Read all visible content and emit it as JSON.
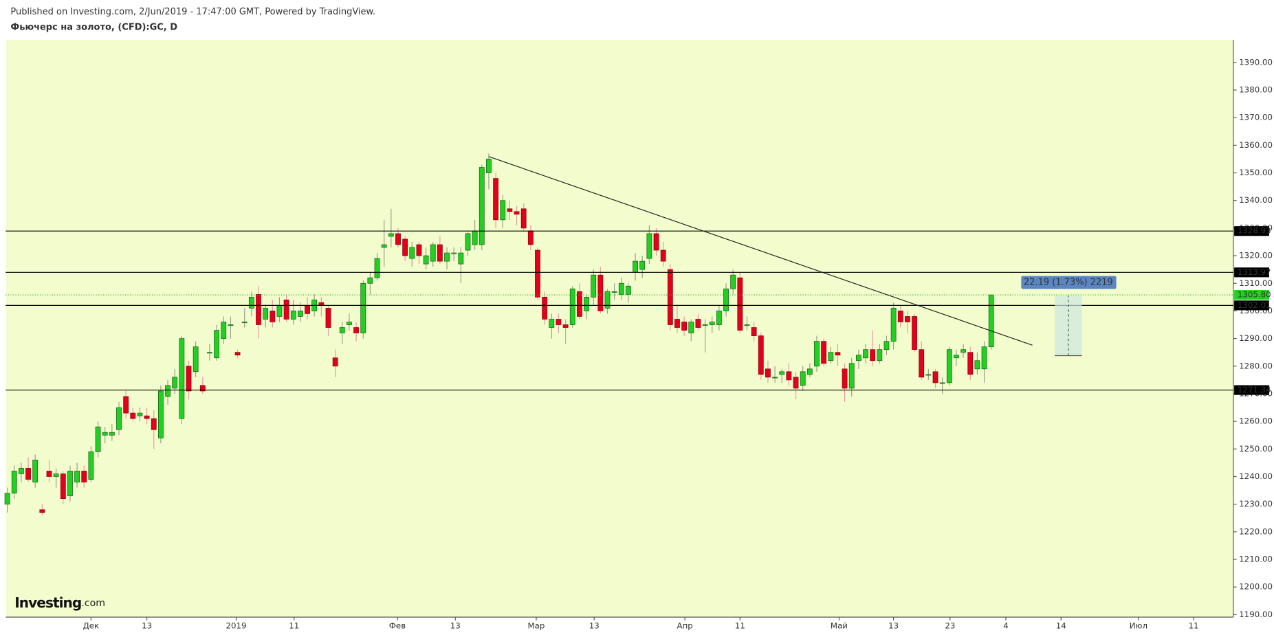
{
  "header": {
    "published": "Published on Investing.com, 2/Jun/2019 - 17:47:00 GMT, Powered by TradingView.",
    "symbol": "Фьючерс на золото, (CFD):GC, D"
  },
  "logo": {
    "brand": "Investing",
    "suffix": ".com"
  },
  "chart_data": {
    "type": "candlestick",
    "open": [
      1230,
      1234,
      1241,
      1243,
      1238,
      1228,
      1242,
      1240,
      1241,
      1233,
      1238,
      1242,
      1239,
      1249,
      1255,
      1255,
      1257,
      1269,
      1263,
      1262,
      1262,
      1261,
      1254,
      1269,
      1272,
      1261,
      1280,
      1278,
      1273,
      1285,
      1283,
      1290,
      1295,
      1285,
      1296,
      1301,
      1306,
      1297,
      1300,
      1298,
      1304,
      1297,
      1298,
      1302,
      1300,
      1303,
      1301,
      1283,
      1292,
      1295,
      1294,
      1292,
      1310,
      1312,
      1323,
      1327,
      1328,
      1326,
      1319,
      1324,
      1317,
      1318,
      1324,
      1318,
      1321,
      1317,
      1322,
      1324,
      1324,
      1350,
      1348,
      1333,
      1337,
      1336,
      1337,
      1329,
      1322,
      1305,
      1294,
      1297,
      1295,
      1295,
      1307,
      1300,
      1305,
      1313,
      1301,
      1307,
      1306,
      1306,
      1314,
      1315,
      1319,
      1328,
      1322,
      1315,
      1297,
      1296,
      1292,
      1297,
      1295,
      1295,
      1295,
      1300,
      1308,
      1312,
      1295,
      1294,
      1291,
      1279,
      1276,
      1277,
      1278,
      1276,
      1273,
      1277,
      1280,
      1289,
      1282,
      1285,
      1279,
      1272,
      1282,
      1283,
      1286,
      1282,
      1286,
      1289,
      1300,
      1298,
      1298,
      1286,
      1277,
      1278,
      1274,
      1274,
      1283,
      1285,
      1285,
      1279,
      1279,
      1287
    ],
    "high": [
      1236,
      1244,
      1245,
      1247,
      1248,
      1230,
      1246,
      1243,
      1242,
      1244,
      1245,
      1244,
      1251,
      1260,
      1258,
      1259,
      1267,
      1271,
      1265,
      1265,
      1265,
      1264,
      1273,
      1275,
      1279,
      1291,
      1282,
      1289,
      1276,
      1288,
      1295,
      1298,
      1298,
      1286,
      1301,
      1307,
      1309,
      1302,
      1304,
      1305,
      1306,
      1304,
      1303,
      1305,
      1306,
      1305,
      1302,
      1286,
      1296,
      1299,
      1296,
      1311,
      1314,
      1321,
      1333,
      1337,
      1330,
      1327,
      1325,
      1325,
      1323,
      1325,
      1327,
      1323,
      1323,
      1323,
      1329,
      1333,
      1353,
      1357,
      1350,
      1342,
      1340,
      1338,
      1339,
      1331,
      1323,
      1307,
      1299,
      1299,
      1297,
      1309,
      1310,
      1306,
      1315,
      1316,
      1308,
      1310,
      1312,
      1310,
      1321,
      1320,
      1331,
      1330,
      1325,
      1317,
      1302,
      1298,
      1297,
      1299,
      1297,
      1298,
      1302,
      1310,
      1315,
      1314,
      1298,
      1296,
      1292,
      1282,
      1280,
      1279,
      1281,
      1278,
      1280,
      1281,
      1291,
      1290,
      1287,
      1288,
      1281,
      1283,
      1286,
      1288,
      1293,
      1288,
      1291,
      1303,
      1302,
      1300,
      1299,
      1289,
      1279,
      1279,
      1276,
      1287,
      1286,
      1288,
      1287,
      1285,
      1289,
      1306
    ],
    "low": [
      1227,
      1232,
      1238,
      1238,
      1236,
      1226,
      1238,
      1236,
      1230,
      1231,
      1236,
      1236,
      1238,
      1247,
      1252,
      1253,
      1255,
      1261,
      1260,
      1260,
      1259,
      1250,
      1252,
      1266,
      1270,
      1259,
      1268,
      1276,
      1270,
      1282,
      1282,
      1288,
      1290,
      1283,
      1294,
      1298,
      1290,
      1294,
      1294,
      1296,
      1296,
      1295,
      1296,
      1297,
      1298,
      1298,
      1291,
      1276,
      1288,
      1293,
      1289,
      1290,
      1306,
      1311,
      1316,
      1323,
      1323,
      1318,
      1316,
      1317,
      1315,
      1316,
      1317,
      1315,
      1318,
      1310,
      1320,
      1322,
      1322,
      1344,
      1330,
      1330,
      1333,
      1331,
      1329,
      1322,
      1304,
      1295,
      1290,
      1292,
      1288,
      1294,
      1297,
      1297,
      1302,
      1299,
      1299,
      1304,
      1304,
      1303,
      1311,
      1312,
      1317,
      1320,
      1316,
      1293,
      1292,
      1291,
      1289,
      1293,
      1285,
      1292,
      1293,
      1298,
      1306,
      1292,
      1293,
      1289,
      1275,
      1274,
      1274,
      1274,
      1273,
      1268,
      1271,
      1276,
      1278,
      1280,
      1281,
      1280,
      1267,
      1269,
      1279,
      1281,
      1280,
      1281,
      1284,
      1286,
      1294,
      1292,
      1285,
      1275,
      1275,
      1272,
      1270,
      1273,
      1280,
      1283,
      1275,
      1277,
      1274,
      1286
    ],
    "close": [
      1234,
      1242,
      1243,
      1239,
      1246,
      1227,
      1240,
      1241,
      1232,
      1242,
      1242,
      1238,
      1249,
      1258,
      1256,
      1256,
      1265,
      1263,
      1261,
      1263,
      1261,
      1257,
      1271,
      1273,
      1276,
      1290,
      1271,
      1287,
      1271,
      1285,
      1293,
      1296,
      1295,
      1284,
      1296,
      1305,
      1295,
      1301,
      1296,
      1302,
      1297,
      1300,
      1300,
      1299,
      1304,
      1302,
      1294,
      1280,
      1294,
      1296,
      1292,
      1310,
      1312,
      1319,
      1324,
      1328,
      1324,
      1320,
      1323,
      1320,
      1320,
      1324,
      1318,
      1321,
      1321,
      1321,
      1328,
      1329,
      1352,
      1355,
      1333,
      1340,
      1336,
      1335,
      1330,
      1324,
      1305,
      1297,
      1297,
      1295,
      1294,
      1308,
      1298,
      1305,
      1313,
      1300,
      1307,
      1307,
      1310,
      1309,
      1318,
      1318,
      1328,
      1322,
      1318,
      1295,
      1294,
      1293,
      1296,
      1294,
      1295,
      1296,
      1300,
      1308,
      1313,
      1293,
      1295,
      1291,
      1277,
      1276,
      1276,
      1278,
      1275,
      1272,
      1278,
      1279,
      1289,
      1281,
      1285,
      1284,
      1272,
      1281,
      1284,
      1286,
      1282,
      1286,
      1289,
      1301,
      1296,
      1296,
      1286,
      1276,
      1277,
      1274,
      1274,
      1286,
      1284,
      1286,
      1277,
      1282,
      1287,
      1305.8
    ],
    "up_color": "#22d022",
    "down_color": "#e3001b",
    "background": "#f2fccc",
    "xlim": [
      -0.23,
      175.7
    ],
    "xticks": [
      {
        "value": 12.0,
        "label": "Дек"
      },
      {
        "value": 20.0,
        "label": "13"
      },
      {
        "value": 32.8,
        "label": "2019"
      },
      {
        "value": 41.1,
        "label": "11"
      },
      {
        "value": 55.9,
        "label": "Фев"
      },
      {
        "value": 64.2,
        "label": "13"
      },
      {
        "value": 75.8,
        "label": "Мар"
      },
      {
        "value": 84.1,
        "label": "13"
      },
      {
        "value": 97.1,
        "label": "Апр"
      },
      {
        "value": 105.0,
        "label": "11"
      },
      {
        "value": 119.2,
        "label": "Май"
      },
      {
        "value": 127.0,
        "label": "13"
      },
      {
        "value": 135.1,
        "label": "23"
      },
      {
        "value": 143.1,
        "label": "4"
      },
      {
        "value": 151.0,
        "label": "14"
      },
      {
        "value": 162.1,
        "label": "Июл"
      },
      {
        "value": 170.0,
        "label": "11"
      }
    ],
    "ylim": [
      1189.1,
      1398.2
    ],
    "yticks": [
      {
        "value": 1190,
        "label": "1190.00"
      },
      {
        "value": 1200,
        "label": "1200.00"
      },
      {
        "value": 1210,
        "label": "1210.00"
      },
      {
        "value": 1220,
        "label": "1220.00"
      },
      {
        "value": 1230,
        "label": "1230.00"
      },
      {
        "value": 1240,
        "label": "1240.00"
      },
      {
        "value": 1250,
        "label": "1250.00"
      },
      {
        "value": 1260,
        "label": "1260.00"
      },
      {
        "value": 1270,
        "label": "1270.00"
      },
      {
        "value": 1280,
        "label": "1280.00"
      },
      {
        "value": 1290,
        "label": "1290.00"
      },
      {
        "value": 1300,
        "label": "1300.00"
      },
      {
        "value": 1310,
        "label": "1310.00"
      },
      {
        "value": 1320,
        "label": "1320.00"
      },
      {
        "value": 1330,
        "label": "1330.00"
      },
      {
        "value": 1340,
        "label": "1340.00"
      },
      {
        "value": 1350,
        "label": "1350.00"
      },
      {
        "value": 1360,
        "label": "1360.00"
      },
      {
        "value": 1370,
        "label": "1370.00"
      },
      {
        "value": 1380,
        "label": "1380.00"
      },
      {
        "value": 1390,
        "label": "1390.00"
      }
    ],
    "levels": [
      1328.93,
      1313.97,
      1302.01,
      1271.34
    ],
    "last_price": {
      "value": 1305.8,
      "label": "1305.80"
    },
    "trendline": {
      "x": [
        69,
        146.9
      ],
      "y": [
        1355.9,
        1287.6
      ]
    },
    "measure": {
      "x": [
        150.1,
        154.0
      ],
      "y": [
        1283.8,
        1305.6
      ],
      "label": "22.19 (1.73%) 2219"
    }
  }
}
